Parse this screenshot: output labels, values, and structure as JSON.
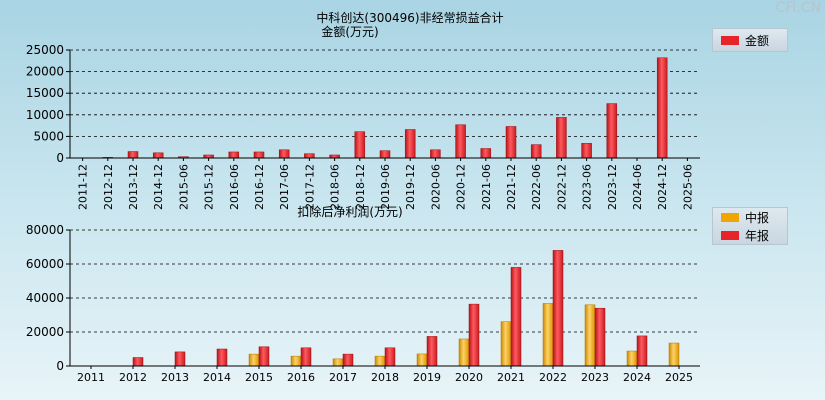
{
  "watermark": "CFi.CN",
  "chart_data": [
    {
      "type": "bar",
      "title": "中科创达(300496)非经常损益合计",
      "subtitle": "金额(万元)",
      "categories": [
        "2011-12",
        "2012-12",
        "2013-12",
        "2014-12",
        "2015-06",
        "2015-12",
        "2016-06",
        "2016-12",
        "2017-06",
        "2017-12",
        "2018-06",
        "2018-12",
        "2019-06",
        "2019-12",
        "2020-06",
        "2020-12",
        "2021-06",
        "2021-12",
        "2022-06",
        "2022-12",
        "2023-06",
        "2023-12",
        "2024-06",
        "2024-12",
        "2025-06"
      ],
      "series": [
        {
          "name": "金额",
          "color": "#e8242b",
          "values": [
            0,
            150,
            1500,
            1200,
            300,
            700,
            1400,
            1400,
            1900,
            1000,
            700,
            6100,
            1700,
            6600,
            1900,
            7700,
            2200,
            7300,
            3100,
            9400,
            3400,
            12600,
            0,
            23200,
            0
          ]
        }
      ],
      "ylim": [
        0,
        25000
      ],
      "yticks": [
        0,
        5000,
        10000,
        15000,
        20000,
        25000
      ],
      "grid": true,
      "legend": "right"
    },
    {
      "type": "bar",
      "title": "扣除后净利润(万元)",
      "categories": [
        "2011",
        "2012",
        "2013",
        "2014",
        "2015",
        "2016",
        "2017",
        "2018",
        "2019",
        "2020",
        "2021",
        "2022",
        "2023",
        "2024",
        "2025"
      ],
      "series": [
        {
          "name": "中报",
          "color": "#f0a500",
          "values": [
            0,
            0,
            0,
            0,
            7000,
            5800,
            4200,
            5800,
            7100,
            15900,
            26100,
            36800,
            36000,
            8800,
            13500
          ]
        },
        {
          "name": "年报",
          "color": "#e8242b",
          "values": [
            0,
            5000,
            8300,
            10000,
            11300,
            10700,
            7000,
            10700,
            17400,
            36400,
            58000,
            68000,
            34000,
            17700,
            null
          ]
        }
      ],
      "ylim": [
        0,
        80000
      ],
      "yticks": [
        0,
        20000,
        40000,
        60000,
        80000
      ],
      "grid": true,
      "legend": "right"
    }
  ]
}
